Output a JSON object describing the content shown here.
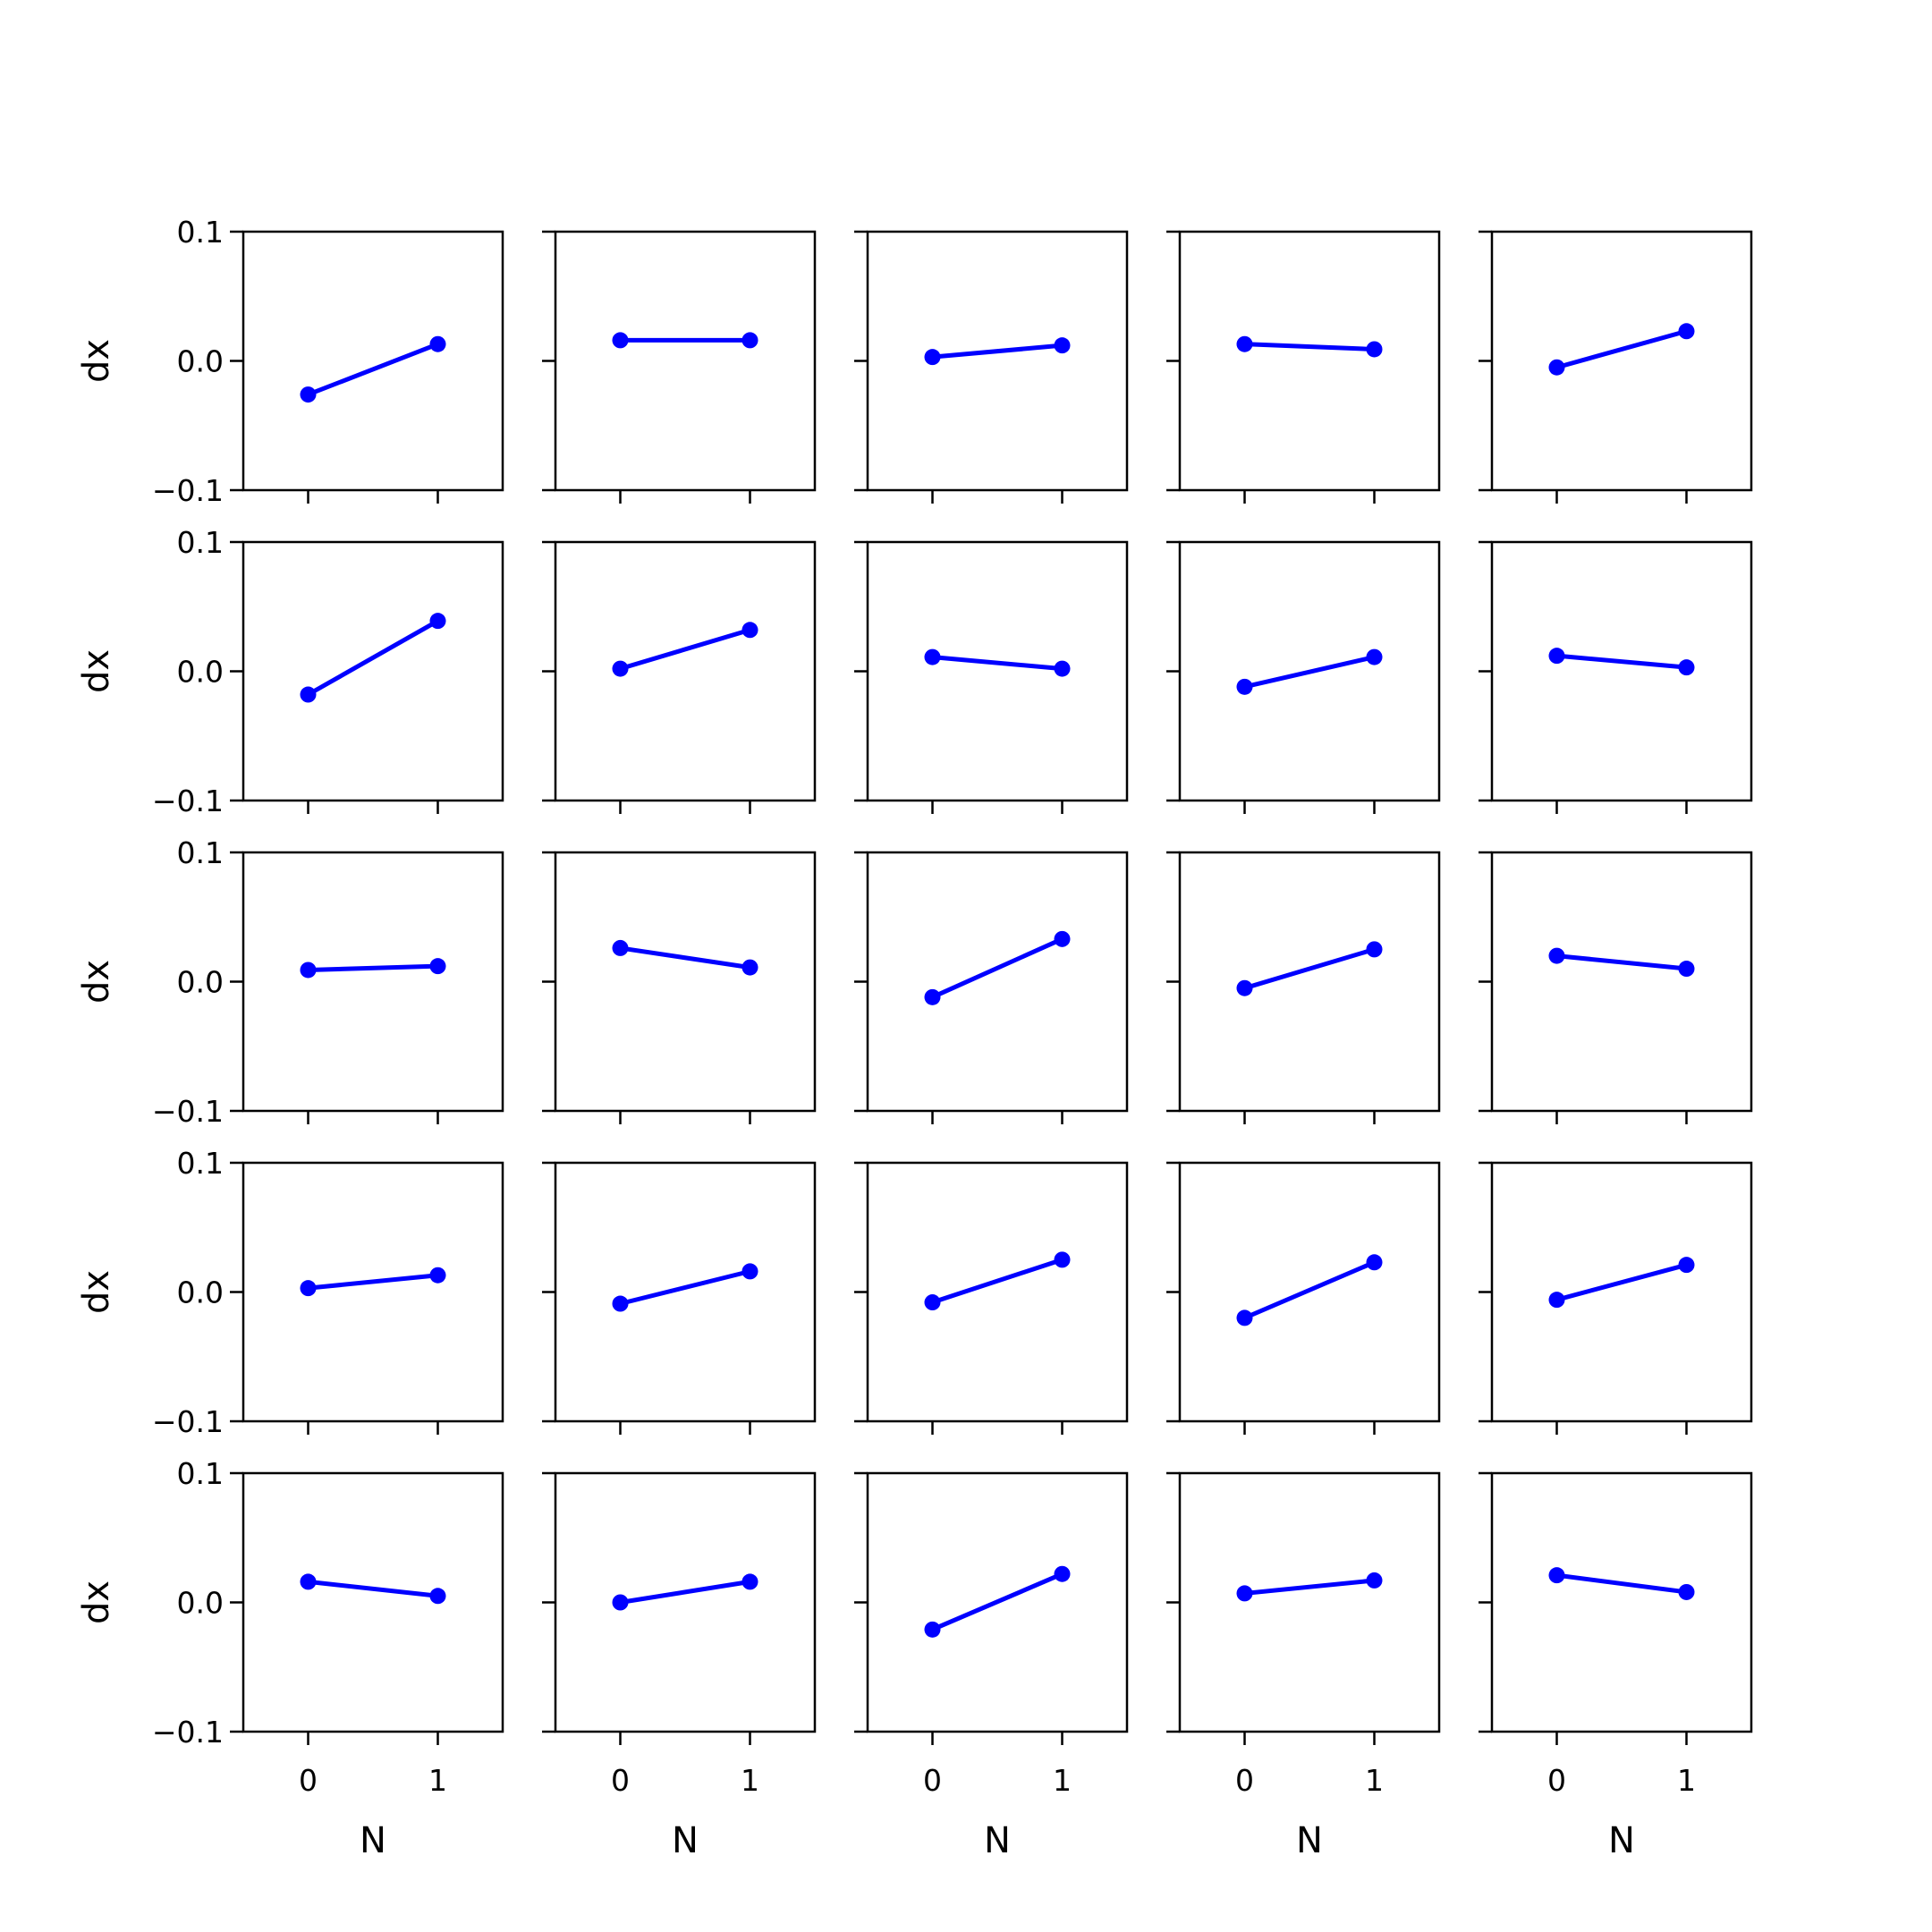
{
  "chart_data": {
    "type": "line",
    "layout": {
      "rows": 5,
      "cols": 5
    },
    "xlabel": "N",
    "ylabel": "dx",
    "x": [
      0,
      1
    ],
    "xticks": [
      "0",
      "1"
    ],
    "xlim": [
      -0.5,
      1.5
    ],
    "ylim": [
      -0.1,
      0.1
    ],
    "yticks": [
      "0.1",
      "0.0",
      "−0.1"
    ],
    "line_color": "#0000ff",
    "marker": "circle",
    "panels": [
      {
        "values": [
          -0.026,
          0.013
        ]
      },
      {
        "values": [
          0.016,
          0.016
        ]
      },
      {
        "values": [
          0.003,
          0.012
        ]
      },
      {
        "values": [
          0.013,
          0.009
        ]
      },
      {
        "values": [
          -0.005,
          0.023
        ]
      },
      {
        "values": [
          -0.018,
          0.039
        ]
      },
      {
        "values": [
          0.002,
          0.032
        ]
      },
      {
        "values": [
          0.011,
          0.002
        ]
      },
      {
        "values": [
          -0.012,
          0.011
        ]
      },
      {
        "values": [
          0.012,
          0.003
        ]
      },
      {
        "values": [
          0.009,
          0.012
        ]
      },
      {
        "values": [
          0.026,
          0.011
        ]
      },
      {
        "values": [
          -0.012,
          0.033
        ]
      },
      {
        "values": [
          -0.005,
          0.025
        ]
      },
      {
        "values": [
          0.02,
          0.01
        ]
      },
      {
        "values": [
          0.003,
          0.013
        ]
      },
      {
        "values": [
          -0.009,
          0.016
        ]
      },
      {
        "values": [
          -0.008,
          0.025
        ]
      },
      {
        "values": [
          -0.02,
          0.023
        ]
      },
      {
        "values": [
          -0.006,
          0.021
        ]
      },
      {
        "values": [
          0.016,
          0.005
        ]
      },
      {
        "values": [
          0.0,
          0.016
        ]
      },
      {
        "values": [
          -0.021,
          0.022
        ]
      },
      {
        "values": [
          0.007,
          0.017
        ]
      },
      {
        "values": [
          0.021,
          0.008
        ]
      }
    ]
  }
}
